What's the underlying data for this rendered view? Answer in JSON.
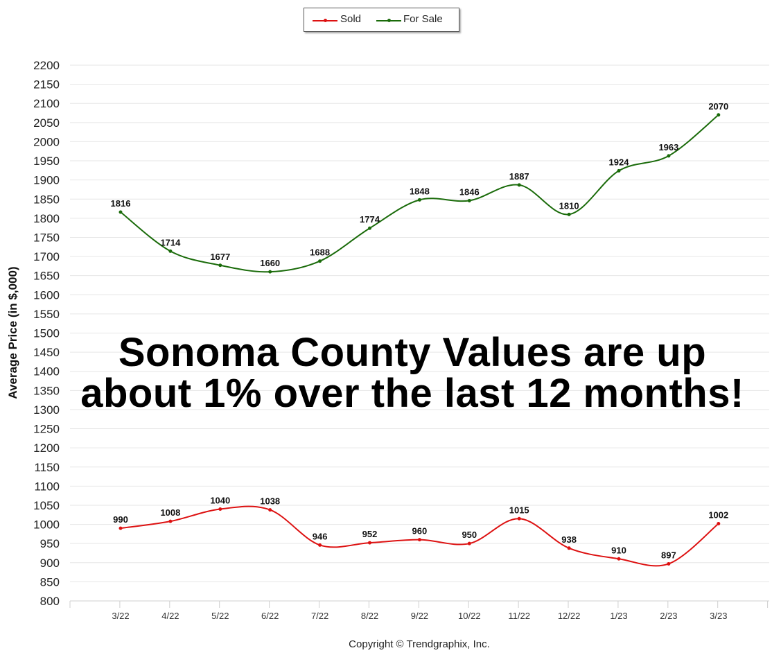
{
  "chart_data": {
    "type": "line",
    "categories": [
      "3/22",
      "4/22",
      "5/22",
      "6/22",
      "7/22",
      "8/22",
      "9/22",
      "10/22",
      "11/22",
      "12/22",
      "1/23",
      "2/23",
      "3/23"
    ],
    "series": [
      {
        "name": "Sold",
        "color": "#dd1111",
        "values": [
          990,
          1008,
          1040,
          1038,
          946,
          952,
          960,
          950,
          1015,
          938,
          910,
          897,
          1002
        ]
      },
      {
        "name": "For Sale",
        "color": "#1a6b0a",
        "values": [
          1816,
          1714,
          1677,
          1660,
          1688,
          1774,
          1848,
          1846,
          1887,
          1810,
          1924,
          1963,
          2070
        ]
      }
    ],
    "ylabel": "Average Price (in $,000)",
    "ylim": [
      800,
      2200
    ],
    "yticks": [
      800,
      850,
      900,
      950,
      1000,
      1050,
      1100,
      1150,
      1200,
      1250,
      1300,
      1350,
      1400,
      1450,
      1500,
      1550,
      1600,
      1650,
      1700,
      1750,
      1800,
      1850,
      1900,
      1950,
      2000,
      2050,
      2100,
      2150,
      2200
    ],
    "grid": true,
    "legend_position": "top-center",
    "annotation": [
      "Sonoma County Values are up",
      "about 1% over the last 12 months!"
    ]
  },
  "copyright": "Copyright © Trendgraphix, Inc."
}
